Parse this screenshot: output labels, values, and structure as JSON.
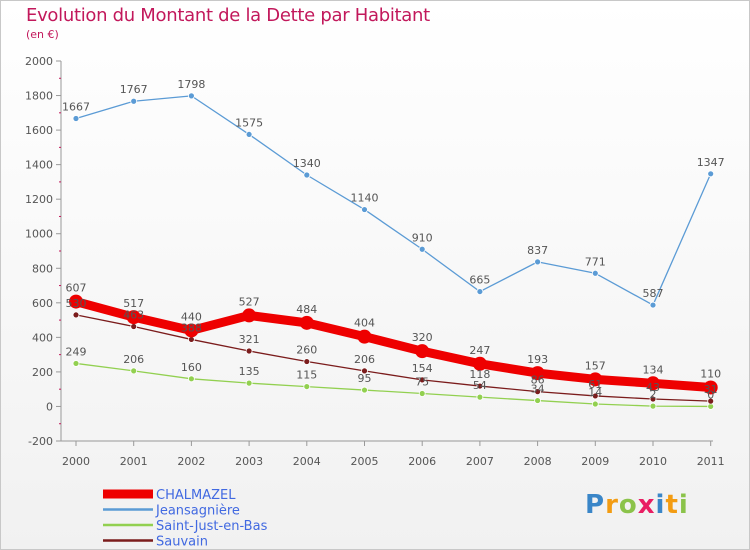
{
  "title": "Evolution du Montant de la Dette par Habitant",
  "subtitle": "(en €)",
  "logo_text": "Proxiti",
  "chart_data": {
    "type": "line",
    "x": [
      "2000",
      "2001",
      "2002",
      "2003",
      "2004",
      "2005",
      "2006",
      "2007",
      "2008",
      "2009",
      "2010",
      "2011"
    ],
    "ylim": [
      -200,
      2000
    ],
    "yticks": [
      -200,
      0,
      200,
      400,
      600,
      800,
      1000,
      1200,
      1400,
      1600,
      1800,
      2000
    ],
    "grid": false,
    "legend_position": "bottom-left",
    "series": [
      {
        "name": "CHALMAZEL",
        "color": "#ee0000",
        "values": [
          607,
          517,
          440,
          527,
          484,
          404,
          320,
          247,
          193,
          157,
          134,
          110
        ],
        "labels": [
          "607",
          "517",
          "440",
          "527",
          "484",
          "404",
          "320",
          "247",
          "193",
          "157",
          "134",
          "110"
        ]
      },
      {
        "name": "Jeansagnière",
        "color": "#5b9bd5",
        "values": [
          1667,
          1767,
          1798,
          1575,
          1340,
          1140,
          910,
          665,
          837,
          771,
          587,
          1347
        ],
        "labels": [
          "1667",
          "1767",
          "1798",
          "1575",
          "1340",
          "1140",
          "910",
          "665",
          "837",
          "771",
          "587",
          "1347"
        ]
      },
      {
        "name": "Saint-Just-en-Bas",
        "color": "#92d050",
        "values": [
          249,
          206,
          160,
          135,
          115,
          95,
          75,
          54,
          34,
          14,
          2,
          0
        ],
        "labels": [
          "249",
          "206",
          "160",
          "135",
          "115",
          "95",
          "75",
          "54",
          "34",
          "14",
          "2",
          "0"
        ]
      },
      {
        "name": "Sauvain",
        "color": "#7b1c1c",
        "values": [
          530,
          463,
          388,
          321,
          260,
          206,
          154,
          118,
          86,
          61,
          43,
          31
        ],
        "labels": [
          "530",
          "463",
          "388",
          "321",
          "260",
          "206",
          "154",
          "118",
          "86",
          "61",
          "43",
          "31"
        ]
      }
    ]
  }
}
